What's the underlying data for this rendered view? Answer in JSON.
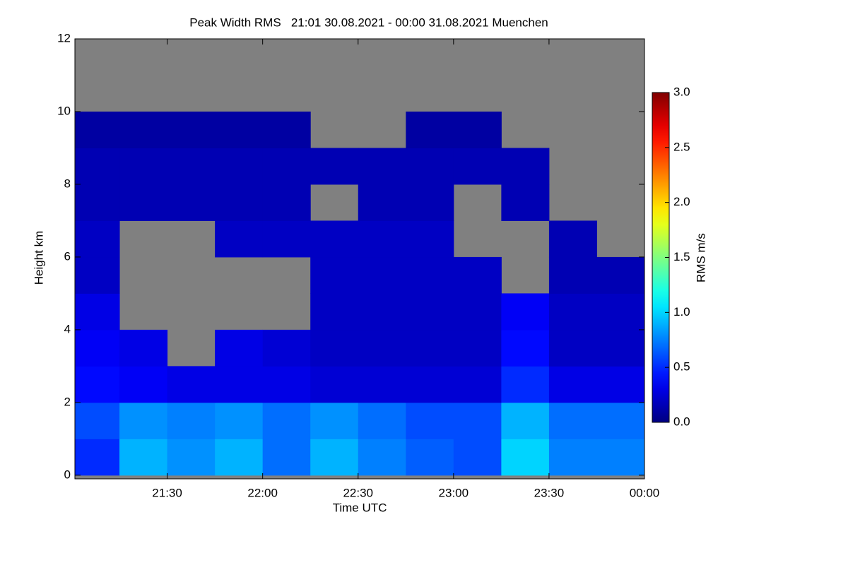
{
  "chart_data": {
    "type": "heatmap",
    "title": "Peak Width RMS   21:01 30.08.2021 - 00:00 31.08.2021 Muenchen",
    "x_label": "Time UTC",
    "y_label": "Height km",
    "colorbar_label": "RMS m/s",
    "colormap": "jet",
    "missing_color": "#808080",
    "xlim": [
      "2021-08-30T21:01",
      "2021-08-31T00:00"
    ],
    "xticks": [
      {
        "value": "2021-08-30T21:30",
        "label": "21:30"
      },
      {
        "value": "2021-08-30T22:00",
        "label": "22:00"
      },
      {
        "value": "2021-08-30T22:30",
        "label": "22:30"
      },
      {
        "value": "2021-08-30T23:00",
        "label": "23:00"
      },
      {
        "value": "2021-08-30T23:30",
        "label": "23:30"
      },
      {
        "value": "2021-08-31T00:00",
        "label": "00:00"
      }
    ],
    "ylim": [
      -0.1,
      12
    ],
    "yticks": [
      0,
      2,
      4,
      6,
      8,
      10,
      12
    ],
    "clim": [
      0,
      3
    ],
    "cticks": [
      {
        "value": 0,
        "label": "0.0"
      },
      0.5,
      {
        "value": 1,
        "label": "1.0"
      },
      1.5,
      {
        "value": 2,
        "label": "2.0"
      },
      2.5,
      {
        "value": 3,
        "label": "3.0"
      }
    ],
    "x_edges": [
      "2021-08-30T21:01",
      "2021-08-30T21:15",
      "2021-08-30T21:30",
      "2021-08-30T21:45",
      "2021-08-30T22:00",
      "2021-08-30T22:15",
      "2021-08-30T22:30",
      "2021-08-30T22:45",
      "2021-08-30T23:00",
      "2021-08-30T23:15",
      "2021-08-30T23:30",
      "2021-08-30T23:45",
      "2021-08-31T00:00"
    ],
    "y_edges": [
      0,
      1,
      2,
      3,
      4,
      5,
      6,
      7,
      8,
      9,
      10,
      11,
      12
    ],
    "z": [
      [
        0.5,
        0.9,
        0.8,
        0.9,
        0.7,
        0.9,
        0.75,
        0.65,
        0.6,
        1.0,
        0.75,
        0.75
      ],
      [
        0.6,
        0.8,
        0.75,
        0.8,
        0.7,
        0.8,
        0.7,
        0.6,
        0.6,
        0.9,
        0.7,
        0.7
      ],
      [
        0.4,
        0.35,
        0.3,
        0.3,
        0.3,
        0.25,
        0.25,
        0.25,
        0.25,
        0.5,
        0.3,
        0.3
      ],
      [
        0.35,
        0.3,
        null,
        0.3,
        0.25,
        0.2,
        0.2,
        0.2,
        0.2,
        0.4,
        0.2,
        0.2
      ],
      [
        0.3,
        null,
        null,
        null,
        null,
        0.2,
        0.2,
        0.2,
        0.2,
        0.35,
        0.2,
        0.2
      ],
      [
        0.2,
        null,
        null,
        null,
        null,
        0.2,
        0.2,
        0.2,
        0.2,
        null,
        0.15,
        0.15
      ],
      [
        0.2,
        null,
        null,
        0.2,
        0.2,
        0.2,
        0.2,
        0.2,
        null,
        null,
        0.15,
        null
      ],
      [
        0.15,
        0.15,
        0.15,
        0.15,
        0.15,
        null,
        0.15,
        0.15,
        null,
        0.15,
        null,
        null
      ],
      [
        0.15,
        0.15,
        0.15,
        0.15,
        0.15,
        0.15,
        0.15,
        0.15,
        0.15,
        0.15,
        null,
        null
      ],
      [
        0.1,
        0.1,
        0.1,
        0.1,
        0.1,
        null,
        null,
        0.1,
        0.1,
        null,
        null,
        null
      ],
      [
        null,
        null,
        null,
        null,
        null,
        null,
        null,
        null,
        null,
        null,
        null,
        null
      ],
      [
        null,
        null,
        null,
        null,
        null,
        null,
        null,
        null,
        null,
        null,
        null,
        null
      ]
    ]
  }
}
